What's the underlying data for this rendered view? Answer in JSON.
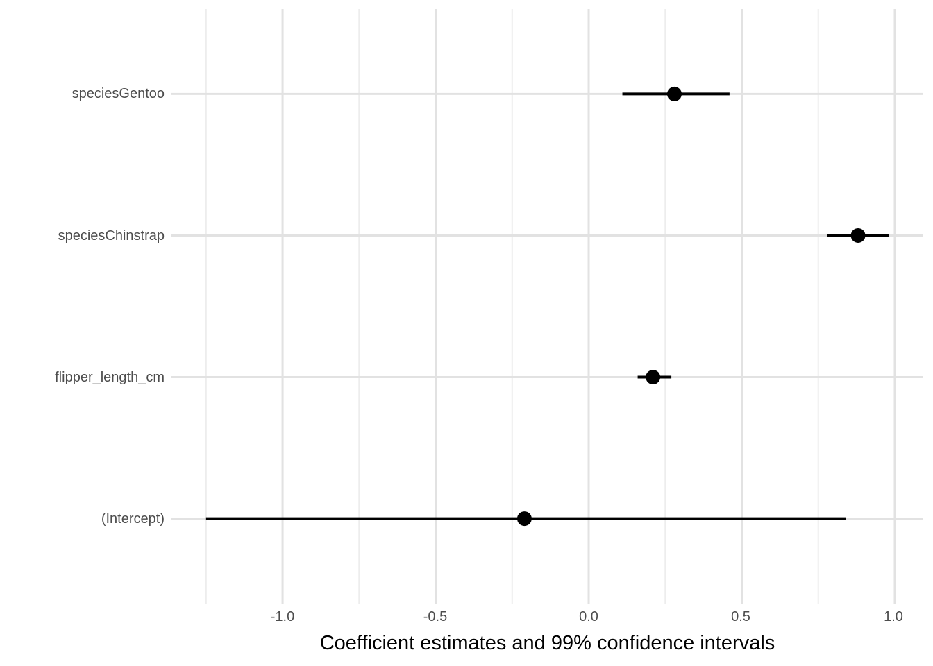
{
  "chart_data": {
    "type": "scatter",
    "variant": "horizontal_pointrange_coefficient_plot",
    "title": "",
    "xlabel": "Coefficient estimates and 99% confidence intervals",
    "ylabel": "",
    "categories": [
      "speciesGentoo",
      "speciesChinstrap",
      "flipper_length_cm",
      "(Intercept)"
    ],
    "series": [
      {
        "name": "coefficient",
        "estimates": [
          0.28,
          0.88,
          0.21,
          -0.21
        ],
        "ci_low": [
          0.11,
          0.78,
          0.16,
          -1.25
        ],
        "ci_high": [
          0.46,
          0.98,
          0.27,
          0.84
        ]
      }
    ],
    "confidence_level": "99%",
    "xlim": [
      -1.363,
      1.093
    ],
    "x_major_ticks": [
      -1.0,
      -0.5,
      0.0,
      0.5,
      1.0
    ],
    "x_tick_labels": [
      "-1.0",
      "-0.5",
      "0.0",
      "0.5",
      "1.0"
    ],
    "x_minor_ticks": [
      -1.25,
      -0.75,
      -0.25,
      0.25,
      0.75
    ],
    "grid": true,
    "legend": false,
    "colors": {
      "point": "#000000",
      "ci_line": "#000000",
      "grid_major": "#e2e2e2",
      "grid_minor": "#ededed",
      "tick_label": "#4d4d4d",
      "axis_title": "#000000",
      "background": "#ffffff"
    }
  }
}
